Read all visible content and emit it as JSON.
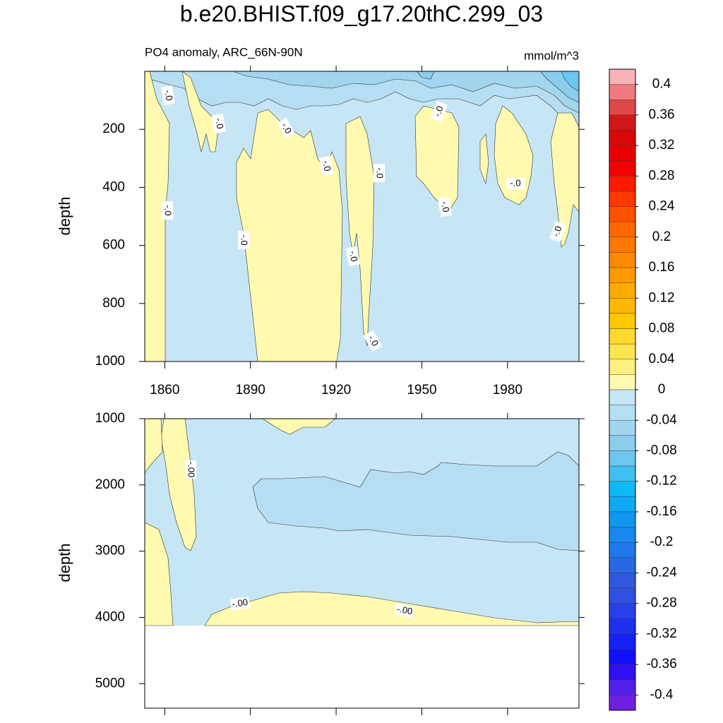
{
  "chart_data": [
    {
      "type": "contour",
      "title": "b.e20.BHIST.f09_g17.20thC.299_03",
      "subtitle": "PO4 anomaly, ARC_66N-90N",
      "units": "mmol/m^3",
      "y_label": "depth",
      "xlim": [
        1853,
        2005
      ],
      "xticks": [
        1860,
        1890,
        1920,
        1950,
        1980
      ],
      "ylim": [
        0,
        1000
      ],
      "yticks": [
        200,
        400,
        600,
        800,
        1000
      ],
      "y_inverted": true,
      "contour_labels": [
        "-.0",
        "-.0",
        "-.0",
        "-.0",
        "-.0",
        "-.0",
        "-.0",
        "-.0",
        "-.0",
        "-.0",
        "-.0",
        "-.0",
        "-.0"
      ]
    },
    {
      "type": "contour",
      "y_label": "depth",
      "xlim": [
        1853,
        2005
      ],
      "xticks": [
        1860,
        1890,
        1920,
        1950,
        1980
      ],
      "ylim": [
        1000,
        5370
      ],
      "yticks": [
        1000,
        2000,
        3000,
        4000,
        5000
      ],
      "y_inverted": true,
      "contour_labels": [
        "-.00",
        "-.00",
        "-.00"
      ]
    },
    {
      "type": "colorbar",
      "ticks": [
        0.4,
        0.36,
        0.32,
        0.28,
        0.24,
        0.2,
        0.16,
        0.12,
        0.08,
        0.04,
        0,
        -0.04,
        -0.08,
        -0.12,
        -0.16,
        -0.2,
        -0.24,
        -0.28,
        -0.32,
        -0.36,
        -0.4
      ],
      "colors": [
        "#f9b3b8",
        "#f07a80",
        "#e04848",
        "#d01818",
        "#d80808",
        "#e80000",
        "#f00000",
        "#ff1a00",
        "#ff3800",
        "#ff5000",
        "#ff6800",
        "#ff7800",
        "#ff8a00",
        "#ff9a00",
        "#ffaa00",
        "#ffb800",
        "#ffc800",
        "#ffd830",
        "#ffe650",
        "#fff080",
        "#fffab0",
        "#c7e6f5",
        "#b5def2",
        "#a2d6ef",
        "#8ccdee",
        "#6bc6f0",
        "#40bff2",
        "#10b8f5",
        "#10a8f5",
        "#1098f0",
        "#1888ee",
        "#2078ea",
        "#2868e4",
        "#3058de",
        "#3050e0",
        "#2840e8",
        "#2030f0",
        "#1820f8",
        "#1010ff",
        "#3010f0",
        "#5020e8",
        "#7020e0"
      ]
    }
  ]
}
